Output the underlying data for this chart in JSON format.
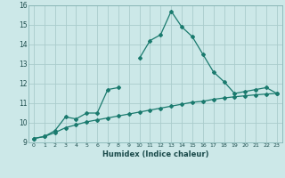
{
  "xlabel": "Humidex (Indice chaleur)",
  "bg_color": "#cce8e8",
  "line_color": "#1a7a6e",
  "grid_color": "#aacccc",
  "xlim": [
    -0.5,
    23.5
  ],
  "ylim": [
    9,
    16
  ],
  "xticks": [
    0,
    1,
    2,
    3,
    4,
    5,
    6,
    7,
    8,
    9,
    10,
    11,
    12,
    13,
    14,
    15,
    16,
    17,
    18,
    19,
    20,
    21,
    22,
    23
  ],
  "yticks": [
    9,
    10,
    11,
    12,
    13,
    14,
    15,
    16
  ],
  "series1_x": [
    0,
    1,
    2,
    3,
    4,
    5,
    6,
    7,
    8,
    9,
    10,
    11,
    12,
    13,
    14,
    15,
    16,
    17,
    18,
    19,
    20,
    21,
    22,
    23
  ],
  "series1_y": [
    9.2,
    9.3,
    9.6,
    10.3,
    10.2,
    10.5,
    10.5,
    11.7,
    11.8,
    null,
    13.3,
    14.2,
    14.5,
    15.7,
    14.9,
    14.4,
    13.5,
    12.6,
    12.1,
    11.5,
    11.6,
    11.7,
    11.8,
    11.5
  ],
  "series2_x": [
    0,
    1,
    2,
    3,
    4,
    5,
    6,
    7,
    8,
    9,
    10,
    11,
    12,
    13,
    14,
    15,
    16,
    17,
    18,
    19,
    20,
    21,
    22,
    23
  ],
  "series2_y": [
    9.2,
    9.3,
    9.5,
    9.75,
    9.9,
    10.05,
    10.15,
    10.25,
    10.35,
    10.45,
    10.55,
    10.65,
    10.75,
    10.85,
    10.95,
    11.05,
    11.1,
    11.2,
    11.27,
    11.33,
    11.38,
    11.43,
    11.47,
    11.5
  ]
}
